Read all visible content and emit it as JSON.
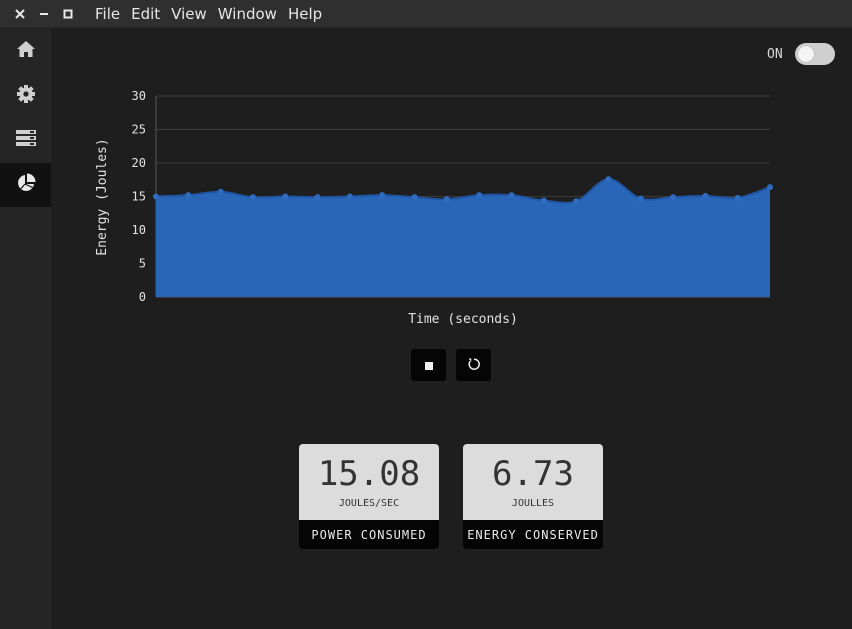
{
  "window": {
    "menu": [
      "File",
      "Edit",
      "View",
      "Window",
      "Help"
    ]
  },
  "sidebar": {
    "items": [
      {
        "icon": "home-icon",
        "active": false
      },
      {
        "icon": "gear-icon",
        "active": false
      },
      {
        "icon": "server-icon",
        "active": false
      },
      {
        "icon": "pie-chart-icon",
        "active": true
      }
    ]
  },
  "toggle": {
    "label": "ON",
    "state": "on"
  },
  "chart_data": {
    "type": "area",
    "xlabel": "Time (seconds)",
    "ylabel": "Energy (Joules)",
    "ylim": [
      0,
      30
    ],
    "yticks": [
      0,
      5,
      10,
      15,
      20,
      25,
      30
    ],
    "grid": true,
    "color": "#2a66b8",
    "series": [
      {
        "values": [
          15.0,
          15.2,
          15.7,
          14.9,
          15.0,
          14.9,
          15.0,
          15.2,
          14.9,
          14.6,
          15.2,
          15.2,
          14.4,
          14.3,
          17.6,
          14.7,
          14.9,
          15.1,
          14.8,
          16.4
        ]
      }
    ]
  },
  "controls": [
    {
      "name": "stop",
      "icon": "stop-icon"
    },
    {
      "name": "reset",
      "icon": "refresh-icon"
    }
  ],
  "stats": [
    {
      "value": "15.08",
      "unit": "JOULES/SEC",
      "label": "POWER CONSUMED"
    },
    {
      "value": "6.73",
      "unit": "JOULLES",
      "label": "ENERGY CONSERVED"
    }
  ],
  "colors": {
    "accent": "#2a66b8",
    "background": "#1e1e1e",
    "sidebar": "#252525"
  }
}
